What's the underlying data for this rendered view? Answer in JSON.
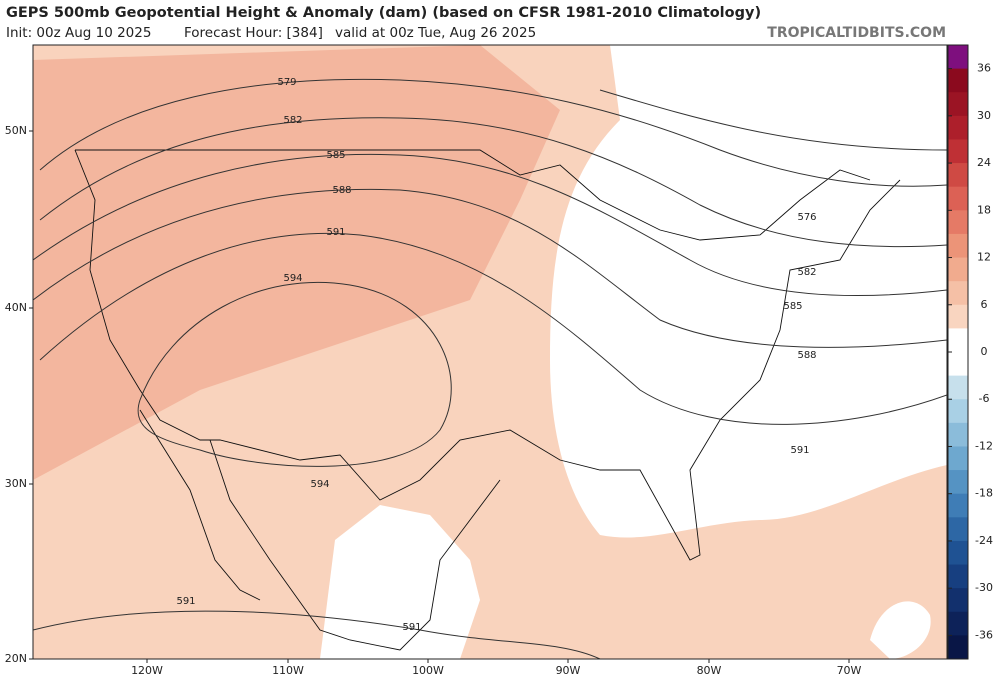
{
  "header": {
    "title": "GEPS 500mb Geopotential Height & Anomaly (dam) (based on CFSR 1981-2010 Climatology)",
    "init": "Init: 00z Aug 10 2025",
    "forecast_hour": "Forecast Hour: [384]",
    "valid": "valid at 00z Tue, Aug 26 2025",
    "site": "TROPICALTIDBITS.COM"
  },
  "map": {
    "lat_labels": [
      "50N",
      "40N",
      "30N",
      "20N"
    ],
    "lon_labels": [
      "120W",
      "110W",
      "100W",
      "90W",
      "80W",
      "70W"
    ],
    "contour_labels": [
      "579",
      "582",
      "585",
      "588",
      "591",
      "594",
      "594",
      "591",
      "591",
      "576",
      "582",
      "585",
      "588",
      "591"
    ]
  },
  "colorbar": {
    "labels": [
      36,
      30,
      24,
      18,
      12,
      6,
      0,
      -6,
      -12,
      -18,
      -24,
      -30,
      -36
    ],
    "colors": [
      "#7e0f7e",
      "#8b0a1e",
      "#9b1424",
      "#ad1f2b",
      "#bf3035",
      "#cf4a44",
      "#dc6155",
      "#e57a66",
      "#ec9478",
      "#f1ab8e",
      "#f5c0a6",
      "#f9d5c0",
      "#ffffff",
      "#ffffff",
      "#c7e0ec",
      "#a9d0e5",
      "#8bbcda",
      "#6ea8cf",
      "#5593c3",
      "#3f7db6",
      "#2d67a5",
      "#1f5293",
      "#173f80",
      "#12306d",
      "#0d2259",
      "#091646"
    ]
  }
}
